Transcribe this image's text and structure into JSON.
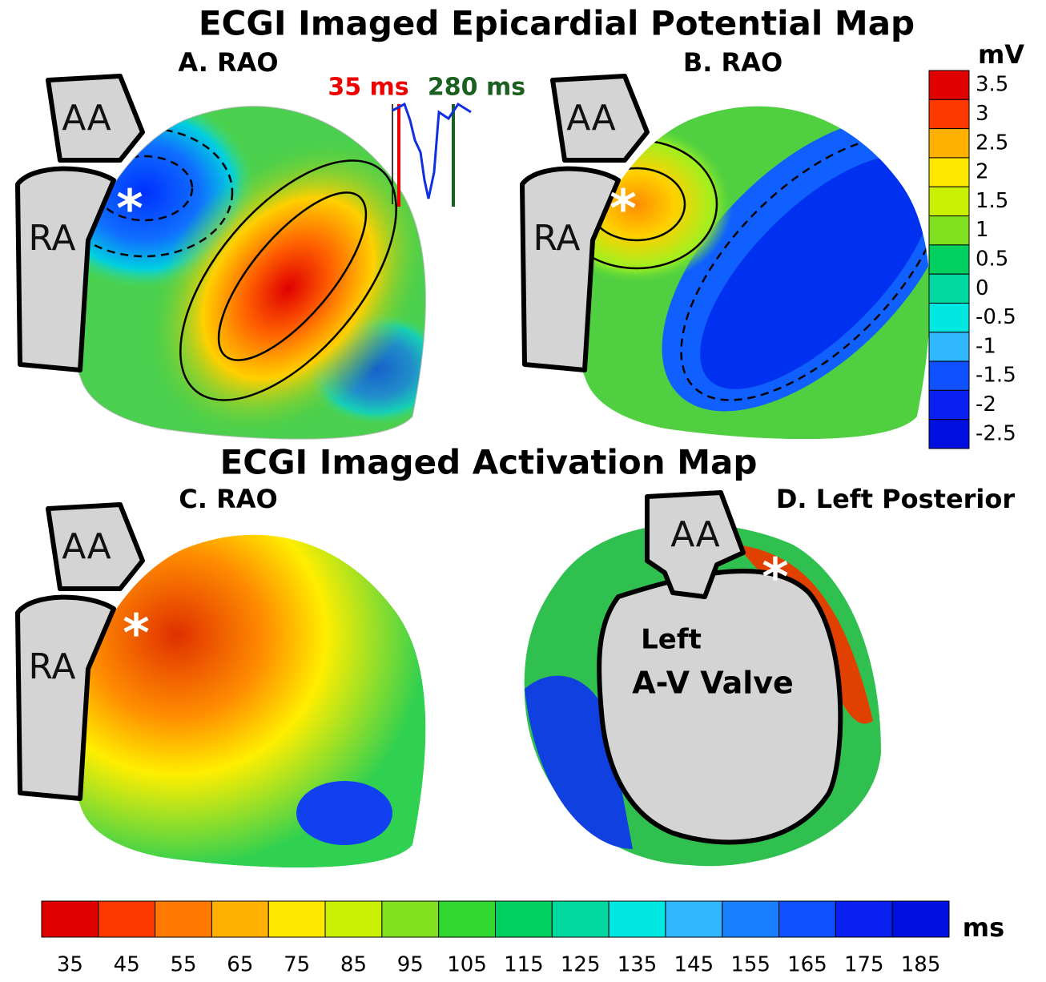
{
  "titles": {
    "potential": "ECGI Imaged Epicardial Potential Map",
    "activation": "ECGI Imaged Activation Map"
  },
  "panels": [
    {
      "label": "A. RAO",
      "regions": [
        "AA",
        "RA"
      ],
      "marker": "*"
    },
    {
      "label": "B. RAO",
      "regions": [
        "AA",
        "RA"
      ],
      "marker": "*"
    },
    {
      "label": "C. RAO",
      "regions": [
        "AA",
        "RA"
      ],
      "marker": "*"
    },
    {
      "label": "D. Left Posterior",
      "regions": [
        "AA",
        "Left",
        "A-V Valve"
      ],
      "marker": "*"
    }
  ],
  "ecg": {
    "start": "35 ms",
    "end": "280 ms"
  },
  "mv_scale": {
    "unit": "mV",
    "labels": [
      3.5,
      3,
      2.5,
      2,
      1.5,
      1,
      0.5,
      0,
      -0.5,
      -1,
      -1.5,
      -2,
      -2.5
    ]
  },
  "ms_scale": {
    "unit": "ms",
    "labels": [
      35,
      45,
      55,
      65,
      75,
      85,
      95,
      105,
      115,
      125,
      135,
      145,
      155,
      165,
      175,
      185
    ]
  }
}
